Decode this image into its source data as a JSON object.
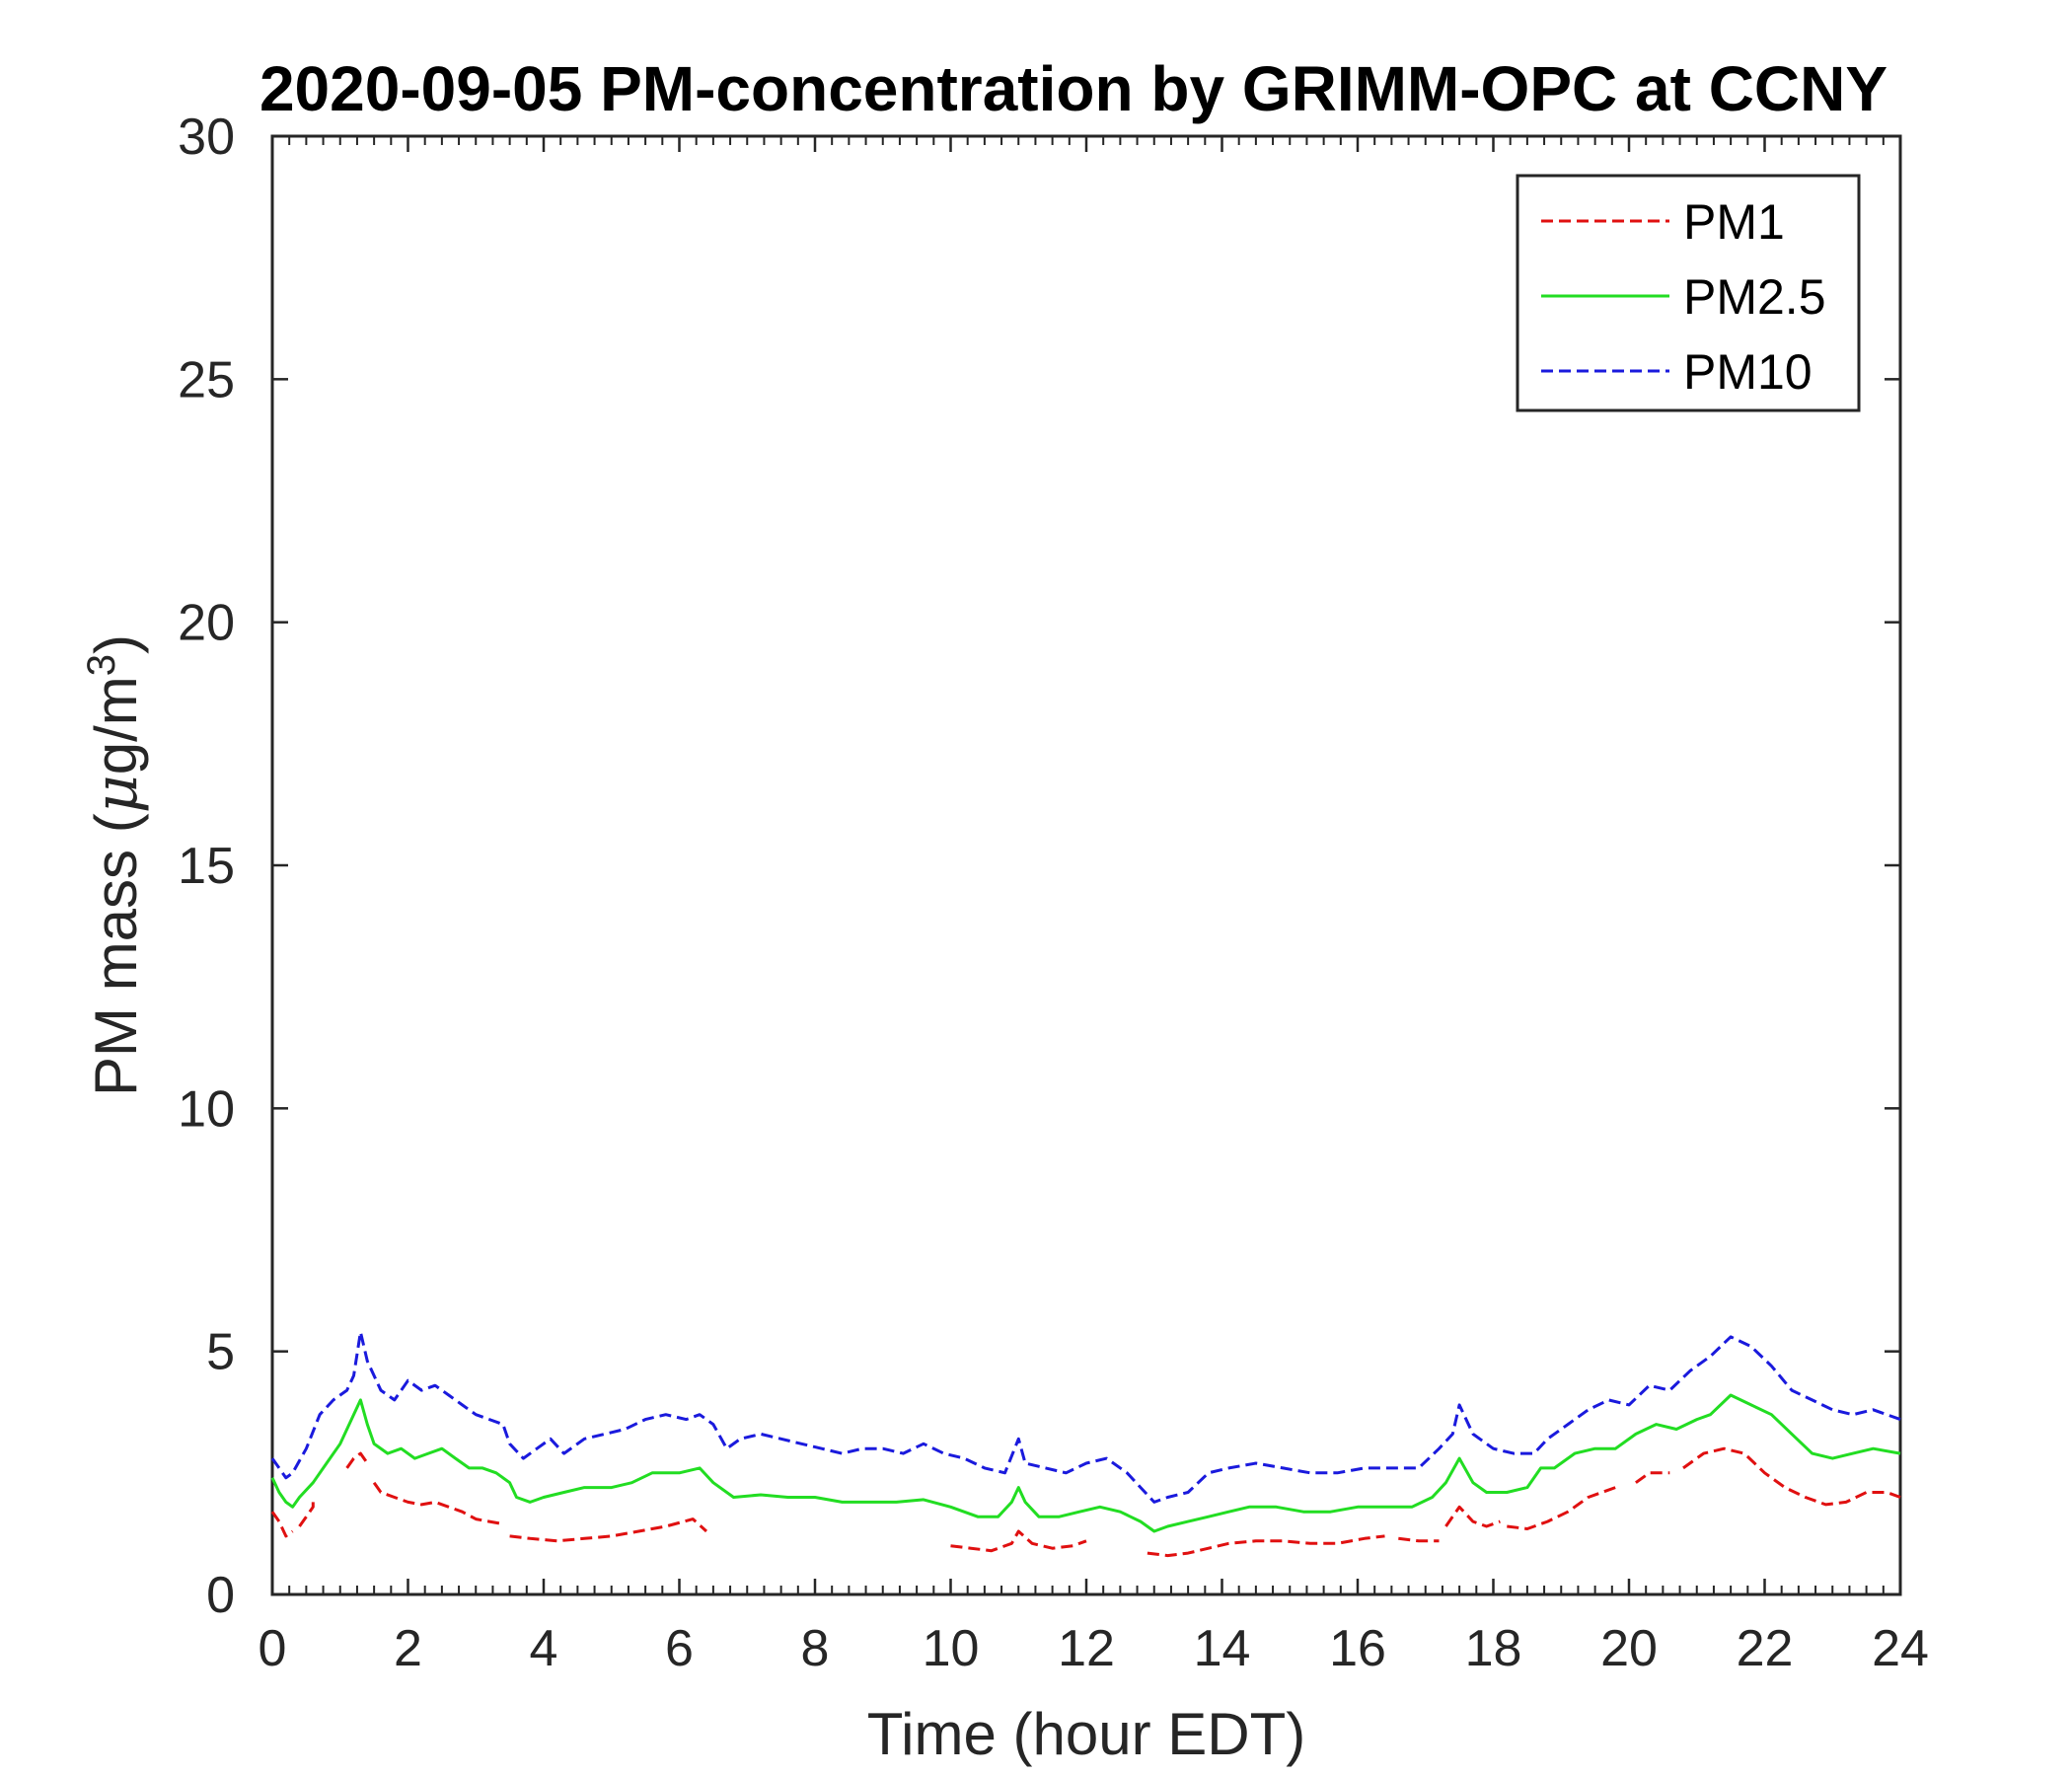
{
  "chart_data": {
    "type": "line",
    "title": "2020-09-05 PM-concentration by GRIMM-OPC at CCNY",
    "xlabel": "Time (hour EDT)",
    "ylabel": "PM mass (",
    "ylabel_mu": "μ",
    "ylabel_unit": "g/m",
    "ylabel_sup": "3",
    "ylabel_close": ")",
    "xlim": [
      0,
      24
    ],
    "ylim": [
      0,
      30
    ],
    "x_ticks": [
      0,
      2,
      4,
      6,
      8,
      10,
      12,
      14,
      16,
      18,
      20,
      22,
      24
    ],
    "y_ticks": [
      0,
      5,
      10,
      15,
      20,
      25,
      30
    ],
    "x_tick_labels": [
      "0",
      "2",
      "4",
      "6",
      "8",
      "10",
      "12",
      "14",
      "16",
      "18",
      "20",
      "22",
      "24"
    ],
    "y_tick_labels": [
      "0",
      "5",
      "10",
      "15",
      "20",
      "25",
      "30"
    ],
    "grid": false,
    "legend_position": "top-right",
    "series": [
      {
        "name": "PM1",
        "color": "#e01010",
        "dash": "dashed",
        "segments": [
          [
            [
              0.0,
              1.7
            ],
            [
              0.1,
              1.5
            ],
            [
              0.2,
              1.2
            ],
            [
              0.3,
              1.3
            ]
          ],
          [
            [
              0.4,
              1.4
            ],
            [
              0.5,
              1.6
            ],
            [
              0.6,
              1.8
            ],
            [
              0.6,
              1.9
            ]
          ],
          [
            [
              1.1,
              2.6
            ],
            [
              1.2,
              2.8
            ],
            [
              1.3,
              2.9
            ],
            [
              1.4,
              2.7
            ]
          ],
          [
            [
              1.5,
              2.3
            ],
            [
              1.6,
              2.1
            ],
            [
              1.8,
              2.0
            ],
            [
              2.0,
              1.9
            ],
            [
              2.2,
              1.85
            ],
            [
              2.4,
              1.9
            ],
            [
              2.6,
              1.8
            ],
            [
              2.8,
              1.7
            ],
            [
              3.0,
              1.55
            ],
            [
              3.2,
              1.5
            ],
            [
              3.4,
              1.45
            ]
          ],
          [
            [
              3.5,
              1.2
            ],
            [
              3.8,
              1.15
            ],
            [
              4.2,
              1.1
            ],
            [
              4.6,
              1.15
            ],
            [
              5.0,
              1.2
            ],
            [
              5.4,
              1.3
            ],
            [
              5.8,
              1.4
            ],
            [
              6.2,
              1.55
            ],
            [
              6.4,
              1.3
            ]
          ],
          [
            [
              10.0,
              1.0
            ],
            [
              10.3,
              0.95
            ],
            [
              10.6,
              0.9
            ],
            [
              10.9,
              1.05
            ],
            [
              11.0,
              1.3
            ],
            [
              11.2,
              1.05
            ],
            [
              11.5,
              0.95
            ],
            [
              11.8,
              1.0
            ],
            [
              12.0,
              1.1
            ]
          ],
          [
            [
              12.9,
              0.85
            ],
            [
              13.2,
              0.8
            ],
            [
              13.5,
              0.85
            ],
            [
              13.8,
              0.95
            ],
            [
              14.1,
              1.05
            ],
            [
              14.5,
              1.1
            ],
            [
              14.9,
              1.1
            ],
            [
              15.3,
              1.05
            ],
            [
              15.7,
              1.05
            ],
            [
              16.1,
              1.15
            ],
            [
              16.4,
              1.2
            ]
          ],
          [
            [
              16.6,
              1.15
            ],
            [
              16.9,
              1.1
            ],
            [
              17.2,
              1.1
            ]
          ],
          [
            [
              17.3,
              1.4
            ],
            [
              17.5,
              1.8
            ],
            [
              17.7,
              1.5
            ],
            [
              17.9,
              1.4
            ],
            [
              18.1,
              1.5
            ]
          ],
          [
            [
              18.2,
              1.4
            ],
            [
              18.5,
              1.35
            ],
            [
              18.8,
              1.5
            ],
            [
              19.1,
              1.7
            ],
            [
              19.4,
              2.0
            ],
            [
              19.8,
              2.2
            ]
          ],
          [
            [
              20.1,
              2.3
            ],
            [
              20.3,
              2.5
            ],
            [
              20.6,
              2.5
            ]
          ],
          [
            [
              20.8,
              2.6
            ],
            [
              21.1,
              2.9
            ],
            [
              21.4,
              3.0
            ],
            [
              21.7,
              2.9
            ],
            [
              22.0,
              2.5
            ],
            [
              22.3,
              2.2
            ],
            [
              22.6,
              2.0
            ],
            [
              22.9,
              1.85
            ],
            [
              23.2,
              1.9
            ],
            [
              23.5,
              2.1
            ],
            [
              23.8,
              2.1
            ],
            [
              24.0,
              2.0
            ]
          ]
        ]
      },
      {
        "name": "PM2.5",
        "color": "#22dd22",
        "dash": "solid",
        "segments": [
          [
            [
              0.0,
              2.4
            ],
            [
              0.1,
              2.1
            ],
            [
              0.2,
              1.9
            ],
            [
              0.3,
              1.8
            ],
            [
              0.4,
              2.0
            ],
            [
              0.6,
              2.3
            ],
            [
              0.8,
              2.7
            ],
            [
              1.0,
              3.1
            ],
            [
              1.2,
              3.7
            ],
            [
              1.3,
              4.0
            ],
            [
              1.4,
              3.5
            ],
            [
              1.5,
              3.1
            ],
            [
              1.7,
              2.9
            ],
            [
              1.9,
              3.0
            ],
            [
              2.1,
              2.8
            ],
            [
              2.3,
              2.9
            ],
            [
              2.5,
              3.0
            ],
            [
              2.7,
              2.8
            ],
            [
              2.9,
              2.6
            ],
            [
              3.1,
              2.6
            ],
            [
              3.3,
              2.5
            ],
            [
              3.5,
              2.3
            ],
            [
              3.6,
              2.0
            ],
            [
              3.8,
              1.9
            ],
            [
              4.0,
              2.0
            ],
            [
              4.3,
              2.1
            ],
            [
              4.6,
              2.2
            ],
            [
              5.0,
              2.2
            ],
            [
              5.3,
              2.3
            ],
            [
              5.6,
              2.5
            ],
            [
              6.0,
              2.5
            ],
            [
              6.3,
              2.6
            ],
            [
              6.5,
              2.3
            ],
            [
              6.8,
              2.0
            ],
            [
              7.2,
              2.05
            ],
            [
              7.6,
              2.0
            ],
            [
              8.0,
              2.0
            ],
            [
              8.4,
              1.9
            ],
            [
              8.8,
              1.9
            ],
            [
              9.2,
              1.9
            ],
            [
              9.6,
              1.95
            ],
            [
              10.0,
              1.8
            ],
            [
              10.4,
              1.6
            ],
            [
              10.7,
              1.6
            ],
            [
              10.9,
              1.9
            ],
            [
              11.0,
              2.2
            ],
            [
              11.1,
              1.9
            ],
            [
              11.3,
              1.6
            ],
            [
              11.6,
              1.6
            ],
            [
              11.9,
              1.7
            ],
            [
              12.2,
              1.8
            ],
            [
              12.5,
              1.7
            ],
            [
              12.8,
              1.5
            ],
            [
              13.0,
              1.3
            ],
            [
              13.2,
              1.4
            ],
            [
              13.5,
              1.5
            ],
            [
              13.8,
              1.6
            ],
            [
              14.1,
              1.7
            ],
            [
              14.4,
              1.8
            ],
            [
              14.8,
              1.8
            ],
            [
              15.2,
              1.7
            ],
            [
              15.6,
              1.7
            ],
            [
              16.0,
              1.8
            ],
            [
              16.4,
              1.8
            ],
            [
              16.8,
              1.8
            ],
            [
              17.1,
              2.0
            ],
            [
              17.3,
              2.3
            ],
            [
              17.5,
              2.8
            ],
            [
              17.7,
              2.3
            ],
            [
              17.9,
              2.1
            ],
            [
              18.2,
              2.1
            ],
            [
              18.5,
              2.2
            ],
            [
              18.7,
              2.6
            ],
            [
              18.9,
              2.6
            ],
            [
              19.2,
              2.9
            ],
            [
              19.5,
              3.0
            ],
            [
              19.8,
              3.0
            ],
            [
              20.1,
              3.3
            ],
            [
              20.4,
              3.5
            ],
            [
              20.7,
              3.4
            ],
            [
              21.0,
              3.6
            ],
            [
              21.2,
              3.7
            ],
            [
              21.5,
              4.1
            ],
            [
              21.8,
              3.9
            ],
            [
              22.1,
              3.7
            ],
            [
              22.4,
              3.3
            ],
            [
              22.7,
              2.9
            ],
            [
              23.0,
              2.8
            ],
            [
              23.3,
              2.9
            ],
            [
              23.6,
              3.0
            ],
            [
              24.0,
              2.9
            ]
          ]
        ]
      },
      {
        "name": "PM10",
        "color": "#1a1add",
        "dash": "dashed",
        "segments": [
          [
            [
              0.0,
              2.8
            ],
            [
              0.1,
              2.6
            ],
            [
              0.2,
              2.4
            ],
            [
              0.3,
              2.5
            ],
            [
              0.5,
              3.0
            ],
            [
              0.7,
              3.7
            ],
            [
              0.9,
              4.0
            ],
            [
              1.1,
              4.2
            ],
            [
              1.2,
              4.5
            ],
            [
              1.3,
              5.4
            ],
            [
              1.4,
              4.8
            ],
            [
              1.6,
              4.2
            ],
            [
              1.8,
              4.0
            ],
            [
              2.0,
              4.4
            ],
            [
              2.2,
              4.2
            ],
            [
              2.4,
              4.3
            ],
            [
              2.6,
              4.1
            ],
            [
              2.8,
              3.9
            ],
            [
              3.0,
              3.7
            ],
            [
              3.2,
              3.6
            ],
            [
              3.4,
              3.5
            ],
            [
              3.5,
              3.1
            ],
            [
              3.7,
              2.8
            ],
            [
              3.9,
              3.0
            ],
            [
              4.1,
              3.2
            ],
            [
              4.3,
              2.9
            ],
            [
              4.6,
              3.2
            ],
            [
              4.9,
              3.3
            ],
            [
              5.2,
              3.4
            ],
            [
              5.5,
              3.6
            ],
            [
              5.8,
              3.7
            ],
            [
              6.1,
              3.6
            ],
            [
              6.3,
              3.7
            ],
            [
              6.5,
              3.5
            ],
            [
              6.7,
              3.0
            ],
            [
              6.9,
              3.2
            ],
            [
              7.2,
              3.3
            ],
            [
              7.5,
              3.2
            ],
            [
              7.8,
              3.1
            ],
            [
              8.1,
              3.0
            ],
            [
              8.4,
              2.9
            ],
            [
              8.7,
              3.0
            ],
            [
              9.0,
              3.0
            ],
            [
              9.3,
              2.9
            ],
            [
              9.6,
              3.1
            ],
            [
              9.9,
              2.9
            ],
            [
              10.2,
              2.8
            ],
            [
              10.5,
              2.6
            ],
            [
              10.8,
              2.5
            ],
            [
              11.0,
              3.2
            ],
            [
              11.1,
              2.7
            ],
            [
              11.4,
              2.6
            ],
            [
              11.7,
              2.5
            ],
            [
              12.0,
              2.7
            ],
            [
              12.3,
              2.8
            ],
            [
              12.6,
              2.5
            ],
            [
              12.8,
              2.2
            ],
            [
              13.0,
              1.9
            ],
            [
              13.2,
              2.0
            ],
            [
              13.5,
              2.1
            ],
            [
              13.8,
              2.5
            ],
            [
              14.1,
              2.6
            ],
            [
              14.5,
              2.7
            ],
            [
              14.9,
              2.6
            ],
            [
              15.3,
              2.5
            ],
            [
              15.7,
              2.5
            ],
            [
              16.1,
              2.6
            ],
            [
              16.5,
              2.6
            ],
            [
              16.9,
              2.6
            ],
            [
              17.2,
              3.0
            ],
            [
              17.4,
              3.3
            ],
            [
              17.5,
              3.9
            ],
            [
              17.7,
              3.3
            ],
            [
              18.0,
              3.0
            ],
            [
              18.3,
              2.9
            ],
            [
              18.6,
              2.9
            ],
            [
              18.8,
              3.2
            ],
            [
              19.1,
              3.5
            ],
            [
              19.4,
              3.8
            ],
            [
              19.7,
              4.0
            ],
            [
              20.0,
              3.9
            ],
            [
              20.3,
              4.3
            ],
            [
              20.6,
              4.2
            ],
            [
              20.9,
              4.6
            ],
            [
              21.2,
              4.9
            ],
            [
              21.5,
              5.3
            ],
            [
              21.8,
              5.1
            ],
            [
              22.1,
              4.7
            ],
            [
              22.4,
              4.2
            ],
            [
              22.7,
              4.0
            ],
            [
              23.0,
              3.8
            ],
            [
              23.3,
              3.7
            ],
            [
              23.6,
              3.8
            ],
            [
              24.0,
              3.6
            ]
          ]
        ]
      }
    ]
  }
}
